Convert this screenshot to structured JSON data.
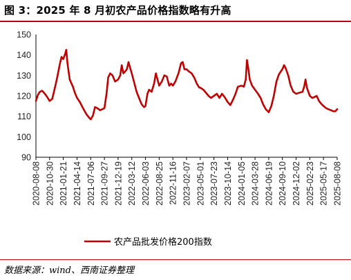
{
  "figure": {
    "title": "图 3：2025 年 8 月初农产品价格指数略有升高",
    "source": "数据来源：wind、西南证券整理"
  },
  "colors": {
    "series": "#c00000",
    "axis": "#000000",
    "rule": "#c00000"
  },
  "chart_data": {
    "type": "line",
    "title": "",
    "xlabel": "",
    "ylabel": "",
    "ylim": [
      90,
      150
    ],
    "yticks": [
      90,
      100,
      110,
      120,
      130,
      140,
      150
    ],
    "grid": false,
    "legend_position": "bottom",
    "xticklabels": [
      "2020-08-08",
      "2020-10-30",
      "2021-01-21",
      "2021-04-14",
      "2021-07-06",
      "2021-09-27",
      "2021-12-19",
      "2022-03-12",
      "2022-06-03",
      "2022-08-25",
      "2022-11-16",
      "2023-02-07",
      "2023-05-01",
      "2023-07-23",
      "2023-10-14",
      "2024-01-05",
      "2024-03-28",
      "2024-06-19",
      "2024-09-10",
      "2024-12-02",
      "2025-02-23",
      "2025-05-17",
      "2025-08-08"
    ],
    "series": [
      {
        "name": "农产品批发价格200指数",
        "points": [
          [
            "2020-08-08",
            117.5
          ],
          [
            "2020-08-20",
            120.5
          ],
          [
            "2020-09-01",
            122.0
          ],
          [
            "2020-09-15",
            122.5
          ],
          [
            "2020-10-01",
            121.0
          ],
          [
            "2020-10-15",
            119.5
          ],
          [
            "2020-10-30",
            117.5
          ],
          [
            "2020-11-15",
            118.5
          ],
          [
            "2020-12-01",
            124.0
          ],
          [
            "2020-12-15",
            129.0
          ],
          [
            "2021-01-01",
            136.0
          ],
          [
            "2021-01-10",
            139.0
          ],
          [
            "2021-01-21",
            138.0
          ],
          [
            "2021-02-01",
            140.5
          ],
          [
            "2021-02-08",
            142.5
          ],
          [
            "2021-02-15",
            136.0
          ],
          [
            "2021-03-01",
            128.0
          ],
          [
            "2021-03-20",
            124.5
          ],
          [
            "2021-04-01",
            121.5
          ],
          [
            "2021-04-14",
            119.0
          ],
          [
            "2021-05-01",
            117.0
          ],
          [
            "2021-05-20",
            114.0
          ],
          [
            "2021-06-10",
            111.0
          ],
          [
            "2021-06-25",
            109.5
          ],
          [
            "2021-07-06",
            108.5
          ],
          [
            "2021-07-20",
            110.5
          ],
          [
            "2021-08-01",
            114.5
          ],
          [
            "2021-08-15",
            114.0
          ],
          [
            "2021-09-01",
            113.0
          ],
          [
            "2021-09-15",
            113.5
          ],
          [
            "2021-09-27",
            114.0
          ],
          [
            "2021-10-10",
            121.0
          ],
          [
            "2021-10-20",
            129.0
          ],
          [
            "2021-11-01",
            131.0
          ],
          [
            "2021-11-15",
            130.0
          ],
          [
            "2021-12-01",
            127.0
          ],
          [
            "2021-12-19",
            128.0
          ],
          [
            "2022-01-01",
            130.0
          ],
          [
            "2022-01-10",
            135.0
          ],
          [
            "2022-01-20",
            131.0
          ],
          [
            "2022-02-01",
            132.0
          ],
          [
            "2022-02-10",
            133.0
          ],
          [
            "2022-02-20",
            136.5
          ],
          [
            "2022-03-01",
            134.0
          ],
          [
            "2022-03-12",
            131.0
          ],
          [
            "2022-03-25",
            127.0
          ],
          [
            "2022-04-10",
            122.0
          ],
          [
            "2022-04-25",
            119.0
          ],
          [
            "2022-05-10",
            116.0
          ],
          [
            "2022-05-25",
            114.5
          ],
          [
            "2022-06-03",
            115.0
          ],
          [
            "2022-06-15",
            121.0
          ],
          [
            "2022-06-25",
            123.0
          ],
          [
            "2022-07-10",
            122.0
          ],
          [
            "2022-07-25",
            126.0
          ],
          [
            "2022-08-05",
            131.0
          ],
          [
            "2022-08-15",
            128.0
          ],
          [
            "2022-08-25",
            125.0
          ],
          [
            "2022-09-10",
            127.0
          ],
          [
            "2022-09-25",
            130.0
          ],
          [
            "2022-10-10",
            129.5
          ],
          [
            "2022-10-25",
            125.0
          ],
          [
            "2022-11-05",
            126.0
          ],
          [
            "2022-11-16",
            125.0
          ],
          [
            "2022-12-01",
            127.0
          ],
          [
            "2022-12-20",
            131.0
          ],
          [
            "2023-01-05",
            136.0
          ],
          [
            "2023-01-15",
            136.5
          ],
          [
            "2023-01-25",
            133.0
          ],
          [
            "2023-02-07",
            133.0
          ],
          [
            "2023-02-20",
            132.0
          ],
          [
            "2023-03-10",
            131.0
          ],
          [
            "2023-03-25",
            129.0
          ],
          [
            "2023-04-10",
            126.0
          ],
          [
            "2023-04-25",
            124.0
          ],
          [
            "2023-05-01",
            124.0
          ],
          [
            "2023-05-20",
            123.0
          ],
          [
            "2023-06-05",
            121.5
          ],
          [
            "2023-06-20",
            120.0
          ],
          [
            "2023-07-05",
            119.0
          ],
          [
            "2023-07-23",
            120.0
          ],
          [
            "2023-08-10",
            121.0
          ],
          [
            "2023-08-25",
            119.0
          ],
          [
            "2023-09-10",
            121.0
          ],
          [
            "2023-09-25",
            119.5
          ],
          [
            "2023-10-14",
            117.0
          ],
          [
            "2023-10-30",
            115.5
          ],
          [
            "2023-11-15",
            118.0
          ],
          [
            "2023-12-01",
            121.0
          ],
          [
            "2023-12-15",
            124.5
          ],
          [
            "2024-01-05",
            125.0
          ],
          [
            "2024-01-20",
            124.5
          ],
          [
            "2024-02-01",
            128.0
          ],
          [
            "2024-02-08",
            137.5
          ],
          [
            "2024-02-15",
            134.0
          ],
          [
            "2024-02-25",
            128.0
          ],
          [
            "2024-03-10",
            125.0
          ],
          [
            "2024-03-28",
            123.0
          ],
          [
            "2024-04-15",
            121.0
          ],
          [
            "2024-05-01",
            119.0
          ],
          [
            "2024-05-15",
            116.0
          ],
          [
            "2024-06-01",
            113.5
          ],
          [
            "2024-06-19",
            112.0
          ],
          [
            "2024-07-05",
            115.0
          ],
          [
            "2024-07-20",
            120.0
          ],
          [
            "2024-08-05",
            127.0
          ],
          [
            "2024-08-20",
            130.5
          ],
          [
            "2024-09-01",
            132.0
          ],
          [
            "2024-09-10",
            133.0
          ],
          [
            "2024-09-20",
            135.0
          ],
          [
            "2024-09-30",
            133.5
          ],
          [
            "2024-10-15",
            130.0
          ],
          [
            "2024-10-30",
            125.0
          ],
          [
            "2024-11-15",
            122.0
          ],
          [
            "2024-12-02",
            121.0
          ],
          [
            "2024-12-20",
            121.5
          ],
          [
            "2025-01-10",
            122.0
          ],
          [
            "2025-01-20",
            124.5
          ],
          [
            "2025-01-28",
            128.0
          ],
          [
            "2025-02-05",
            124.0
          ],
          [
            "2025-02-23",
            120.0
          ],
          [
            "2025-03-10",
            119.0
          ],
          [
            "2025-03-25",
            119.5
          ],
          [
            "2025-04-05",
            120.0
          ],
          [
            "2025-04-20",
            117.5
          ],
          [
            "2025-05-05",
            116.0
          ],
          [
            "2025-05-17",
            115.0
          ],
          [
            "2025-06-01",
            114.0
          ],
          [
            "2025-06-15",
            113.5
          ],
          [
            "2025-07-01",
            113.0
          ],
          [
            "2025-07-15",
            112.5
          ],
          [
            "2025-07-28",
            112.5
          ],
          [
            "2025-08-08",
            113.5
          ]
        ]
      }
    ]
  }
}
